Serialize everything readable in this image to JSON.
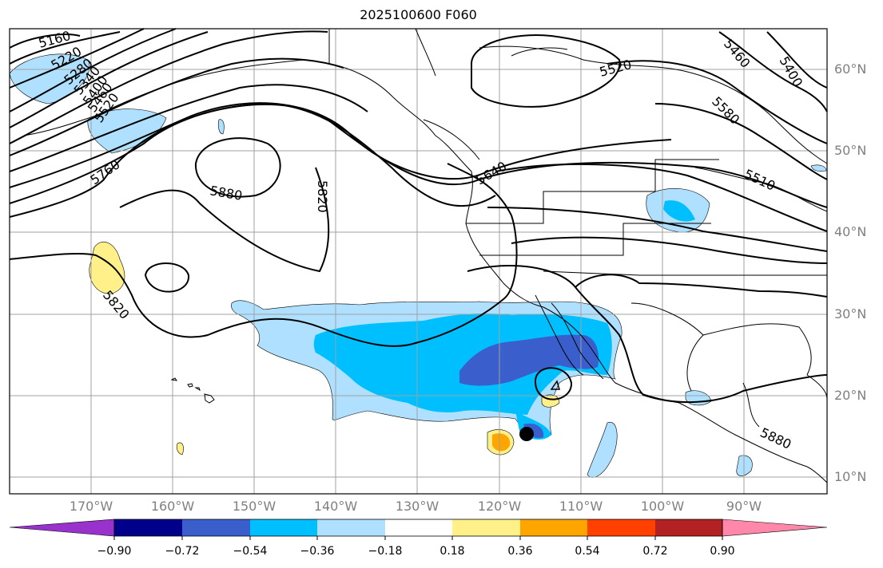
{
  "title": "2025100600 F060",
  "map": {
    "projection": "PlateCarree",
    "lon_range": [
      -180,
      -80
    ],
    "lat_range": [
      7,
      64
    ],
    "gridlines": true,
    "lat_ticks": [
      "60°N",
      "50°N",
      "40°N",
      "30°N",
      "20°N",
      "10°N"
    ],
    "lon_ticks": [
      "170°W",
      "160°W",
      "150°W",
      "140°W",
      "130°W",
      "120°W",
      "110°W",
      "100°W",
      "90°W"
    ],
    "contour_labels": [
      "5160",
      "5220",
      "5280",
      "5340",
      "5400",
      "5460",
      "5520",
      "5520",
      "5460",
      "5400",
      "5580",
      "5760",
      "5880",
      "5820",
      "5820",
      "5640",
      "5880",
      "5510"
    ],
    "marker": "black-dot"
  },
  "colorbar": {
    "colors": [
      "#9932cc",
      "#00008b",
      "#3a5fcd",
      "#00bfff",
      "#b0e0ff",
      "#ffffff",
      "#fff08a",
      "#ffa500",
      "#ff4000",
      "#b22222",
      "#ff88aa"
    ],
    "tick_labels": [
      "−0.90",
      "−0.72",
      "−0.54",
      "−0.36",
      "−0.18",
      "0.18",
      "0.36",
      "0.54",
      "0.72",
      "0.90"
    ]
  }
}
